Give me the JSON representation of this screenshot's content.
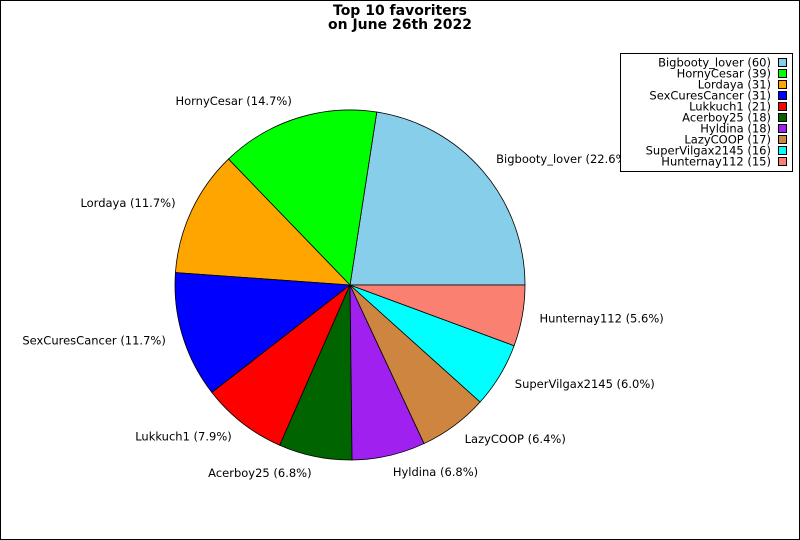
{
  "chart_data": {
    "type": "pie",
    "title": "Top 10 favoriters",
    "subtitle": "on June 26th 2022",
    "values": [
      60,
      39,
      31,
      31,
      21,
      18,
      18,
      17,
      16,
      15
    ],
    "value_labels": [
      "Bigbooty_lover (22.6%)",
      "HornyCesar (14.7%)",
      "Lordaya (11.7%)",
      "SexCuresCancer (11.7%)",
      "Lukkuch1 (7.9%)",
      "Acerboy25 (6.8%)",
      "Hyldina (6.8%)",
      "LazyCOOP (6.4%)",
      "SuperVilgax2145 (6.0%)",
      "Hunternay112 (5.6%)"
    ],
    "legend_labels": [
      "Bigbooty_lover (60)",
      "HornyCesar (39)",
      "Lordaya (31)",
      "SexCuresCancer (31)",
      "Lukkuch1 (21)",
      "Acerboy25 (18)",
      "Hyldina (18)",
      "LazyCOOP (17)",
      "SuperVilgax2145 (16)",
      "Hunternay112 (15)"
    ],
    "colors": [
      "#87ceeb",
      "#00ff00",
      "#ffa500",
      "#0000ff",
      "#ff0000",
      "#006400",
      "#a020f0",
      "#cd853f",
      "#00ffff",
      "#fa8072"
    ],
    "legend": "upper right"
  }
}
